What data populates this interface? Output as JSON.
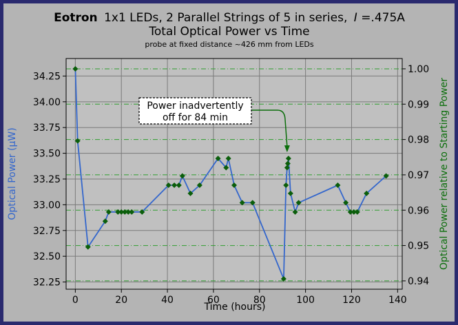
{
  "chart_data": {
    "type": "line",
    "title": {
      "bold": "Eotron",
      "rest": "1x1 LEDs, 2 Parallel Strings of 5 in series,",
      "current_var": "I",
      "current_val": "=.475A"
    },
    "subtitle": "Total Optical Power vs Time",
    "note": "probe at fixed distance ~426 mm from LEDs",
    "xlabel": "Time (hours)",
    "ylabel_left": "Optical Power (μW)",
    "ylabel_right": "Optical Power relative to Starting Power",
    "xlim": [
      -4,
      142
    ],
    "ylim": [
      32.18,
      34.42
    ],
    "xticks": [
      0,
      20,
      40,
      60,
      80,
      100,
      120,
      140
    ],
    "yticks_left": [
      "32.25",
      "32.50",
      "32.75",
      "33.00",
      "33.25",
      "33.50",
      "33.75",
      "34.00",
      "34.25"
    ],
    "yticks_right": [
      "0.94",
      "0.95",
      "0.96",
      "0.97",
      "0.98",
      "0.99",
      "1.00"
    ],
    "right_axis_reference": 34.32,
    "annotation": {
      "lines": [
        "Power inadvertently",
        "off for 84 min"
      ],
      "target": [
        92,
        33.51
      ]
    },
    "series": [
      {
        "color": "#3366cc",
        "marker_color": "#0b5e0b",
        "x": [
          0,
          1,
          5.5,
          13,
          14.5,
          18.5,
          20,
          21.5,
          23,
          24.5,
          29,
          40.5,
          43,
          45,
          46.5,
          50,
          54,
          62,
          65.5,
          66.5,
          69,
          72.5,
          77,
          90.5,
          91.5,
          92,
          92.3,
          92.6,
          93.5,
          95.5,
          97,
          114,
          117.5,
          119.5,
          121,
          122.5,
          126.5,
          135
        ],
        "y": [
          34.32,
          33.62,
          32.59,
          32.84,
          32.93,
          32.93,
          32.93,
          32.93,
          32.93,
          32.93,
          32.93,
          33.19,
          33.19,
          33.19,
          33.28,
          33.11,
          33.19,
          33.45,
          33.36,
          33.45,
          33.19,
          33.02,
          33.02,
          32.28,
          33.19,
          33.36,
          33.4,
          33.45,
          33.11,
          32.93,
          33.02,
          33.19,
          33.02,
          32.93,
          32.93,
          32.93,
          33.11,
          33.28
        ]
      }
    ],
    "colors": {
      "background": "#b4b4b4",
      "plot_area": "#c0c0c0",
      "grid": "#7a7a7a",
      "right_grid": "#2f9e2f",
      "left_axis": "#3366cc",
      "right_axis": "#0b6e0b",
      "border": "#2a2a6e"
    }
  }
}
